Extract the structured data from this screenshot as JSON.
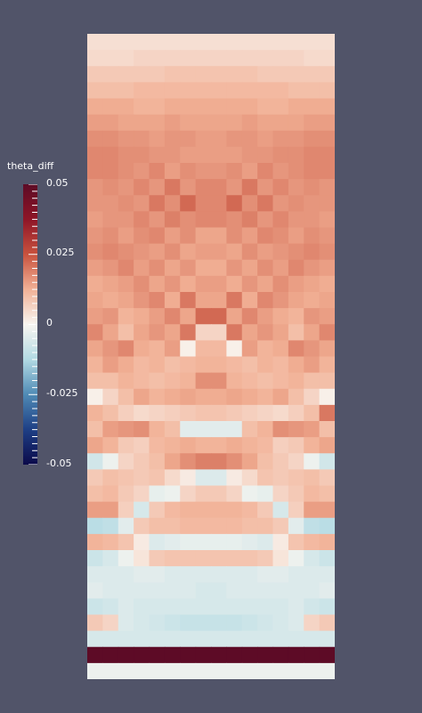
{
  "colorbar": {
    "title": "theta_diff",
    "labels": [
      "0.05",
      "0.025",
      "0",
      "-0.025",
      "-0.05"
    ],
    "range": [
      -0.05,
      0.05
    ],
    "colormap": [
      "#0b0a4a",
      "#1e3f85",
      "#4f8ab5",
      "#b2dae4",
      "#f8f5f0",
      "#f2b196",
      "#c8523e",
      "#8e1527",
      "#5d0b26"
    ]
  },
  "field": {
    "name": "theta_diff",
    "rows": 40,
    "cols": 16,
    "values_cols": 16,
    "values": [
      [
        0.004,
        0.004,
        0.004,
        0.004,
        0.004,
        0.004,
        0.004,
        0.004,
        0.004,
        0.004,
        0.004,
        0.004,
        0.004,
        0.004,
        0.004,
        0.004
      ],
      [
        0.005,
        0.005,
        0.005,
        0.006,
        0.006,
        0.006,
        0.006,
        0.006,
        0.006,
        0.006,
        0.006,
        0.006,
        0.006,
        0.006,
        0.005,
        0.005
      ],
      [
        0.008,
        0.008,
        0.008,
        0.008,
        0.008,
        0.009,
        0.009,
        0.009,
        0.009,
        0.009,
        0.009,
        0.008,
        0.008,
        0.008,
        0.008,
        0.008
      ],
      [
        0.01,
        0.01,
        0.01,
        0.011,
        0.011,
        0.011,
        0.011,
        0.011,
        0.011,
        0.011,
        0.011,
        0.011,
        0.011,
        0.01,
        0.01,
        0.01
      ],
      [
        0.013,
        0.013,
        0.013,
        0.012,
        0.012,
        0.013,
        0.013,
        0.013,
        0.013,
        0.013,
        0.013,
        0.012,
        0.012,
        0.013,
        0.013,
        0.013
      ],
      [
        0.015,
        0.015,
        0.014,
        0.014,
        0.014,
        0.015,
        0.014,
        0.014,
        0.014,
        0.014,
        0.015,
        0.014,
        0.014,
        0.014,
        0.015,
        0.015
      ],
      [
        0.017,
        0.017,
        0.016,
        0.016,
        0.015,
        0.016,
        0.016,
        0.015,
        0.015,
        0.016,
        0.016,
        0.015,
        0.016,
        0.016,
        0.017,
        0.017
      ],
      [
        0.018,
        0.018,
        0.017,
        0.017,
        0.016,
        0.016,
        0.015,
        0.015,
        0.015,
        0.015,
        0.016,
        0.016,
        0.017,
        0.017,
        0.018,
        0.018
      ],
      [
        0.018,
        0.018,
        0.017,
        0.016,
        0.018,
        0.015,
        0.017,
        0.016,
        0.016,
        0.017,
        0.015,
        0.018,
        0.016,
        0.017,
        0.018,
        0.018
      ],
      [
        0.016,
        0.017,
        0.016,
        0.018,
        0.016,
        0.02,
        0.016,
        0.018,
        0.018,
        0.016,
        0.02,
        0.016,
        0.018,
        0.016,
        0.017,
        0.016
      ],
      [
        0.016,
        0.016,
        0.017,
        0.016,
        0.02,
        0.017,
        0.022,
        0.018,
        0.018,
        0.022,
        0.017,
        0.02,
        0.016,
        0.017,
        0.016,
        0.016
      ],
      [
        0.015,
        0.016,
        0.016,
        0.018,
        0.016,
        0.019,
        0.017,
        0.018,
        0.018,
        0.017,
        0.019,
        0.016,
        0.018,
        0.016,
        0.016,
        0.015
      ],
      [
        0.016,
        0.017,
        0.015,
        0.017,
        0.018,
        0.015,
        0.017,
        0.014,
        0.014,
        0.017,
        0.015,
        0.018,
        0.017,
        0.015,
        0.017,
        0.016
      ],
      [
        0.017,
        0.018,
        0.017,
        0.016,
        0.015,
        0.017,
        0.014,
        0.015,
        0.015,
        0.014,
        0.017,
        0.015,
        0.016,
        0.017,
        0.018,
        0.017
      ],
      [
        0.015,
        0.016,
        0.018,
        0.015,
        0.017,
        0.014,
        0.016,
        0.013,
        0.013,
        0.016,
        0.014,
        0.017,
        0.015,
        0.018,
        0.016,
        0.015
      ],
      [
        0.013,
        0.014,
        0.015,
        0.017,
        0.014,
        0.016,
        0.013,
        0.015,
        0.015,
        0.013,
        0.016,
        0.014,
        0.017,
        0.015,
        0.014,
        0.013
      ],
      [
        0.014,
        0.013,
        0.014,
        0.016,
        0.018,
        0.013,
        0.02,
        0.014,
        0.014,
        0.02,
        0.013,
        0.018,
        0.016,
        0.014,
        0.013,
        0.014
      ],
      [
        0.015,
        0.016,
        0.012,
        0.013,
        0.015,
        0.018,
        0.014,
        0.022,
        0.022,
        0.014,
        0.018,
        0.015,
        0.013,
        0.012,
        0.016,
        0.015
      ],
      [
        0.018,
        0.014,
        0.01,
        0.014,
        0.016,
        0.014,
        0.02,
        0.006,
        0.006,
        0.02,
        0.014,
        0.016,
        0.014,
        0.01,
        0.014,
        0.018
      ],
      [
        0.014,
        0.016,
        0.018,
        0.013,
        0.012,
        0.015,
        0.001,
        0.011,
        0.011,
        0.001,
        0.015,
        0.012,
        0.013,
        0.018,
        0.016,
        0.014
      ],
      [
        0.012,
        0.015,
        0.013,
        0.011,
        0.012,
        0.01,
        0.011,
        0.012,
        0.012,
        0.011,
        0.01,
        0.012,
        0.011,
        0.013,
        0.015,
        0.012
      ],
      [
        0.01,
        0.01,
        0.012,
        0.011,
        0.01,
        0.011,
        0.012,
        0.017,
        0.017,
        0.012,
        0.011,
        0.01,
        0.011,
        0.012,
        0.01,
        0.01
      ],
      [
        0.001,
        0.006,
        0.01,
        0.014,
        0.012,
        0.013,
        0.014,
        0.013,
        0.013,
        0.014,
        0.013,
        0.012,
        0.014,
        0.01,
        0.006,
        0.001
      ],
      [
        0.012,
        0.01,
        0.007,
        0.005,
        0.006,
        0.007,
        0.008,
        0.009,
        0.009,
        0.008,
        0.007,
        0.006,
        0.005,
        0.007,
        0.01,
        0.02
      ],
      [
        0.01,
        0.015,
        0.016,
        0.017,
        0.012,
        0.01,
        -0.004,
        -0.004,
        -0.004,
        -0.004,
        0.01,
        0.012,
        0.017,
        0.016,
        0.015,
        0.01
      ],
      [
        0.014,
        0.012,
        0.008,
        0.007,
        0.011,
        0.012,
        0.013,
        0.012,
        0.012,
        0.013,
        0.012,
        0.011,
        0.007,
        0.008,
        0.012,
        0.014
      ],
      [
        -0.007,
        -0.002,
        0.006,
        0.008,
        0.01,
        0.014,
        0.017,
        0.019,
        0.019,
        0.017,
        0.014,
        0.01,
        0.008,
        0.006,
        -0.002,
        -0.007
      ],
      [
        0.008,
        0.01,
        0.009,
        0.008,
        0.009,
        0.005,
        0.002,
        -0.005,
        -0.005,
        0.002,
        0.005,
        0.009,
        0.008,
        0.009,
        0.01,
        0.008
      ],
      [
        0.01,
        0.011,
        0.008,
        0.006,
        -0.003,
        -0.002,
        0.006,
        0.008,
        0.008,
        0.006,
        -0.002,
        -0.003,
        0.006,
        0.008,
        0.011,
        0.01
      ],
      [
        0.015,
        0.015,
        0.007,
        -0.006,
        0.008,
        0.011,
        0.012,
        0.012,
        0.012,
        0.012,
        0.011,
        0.008,
        -0.006,
        0.007,
        0.015,
        0.015
      ],
      [
        -0.011,
        -0.01,
        -0.004,
        0.008,
        0.01,
        0.01,
        0.011,
        0.011,
        0.011,
        0.011,
        0.01,
        0.01,
        0.008,
        -0.004,
        -0.01,
        -0.011
      ],
      [
        0.012,
        0.011,
        0.009,
        0.002,
        -0.005,
        -0.004,
        -0.003,
        -0.003,
        -0.003,
        -0.003,
        -0.004,
        -0.005,
        0.002,
        0.009,
        0.011,
        0.012
      ],
      [
        -0.008,
        -0.006,
        -0.002,
        0.003,
        0.008,
        0.009,
        0.009,
        0.009,
        0.009,
        0.009,
        0.009,
        0.008,
        0.003,
        -0.002,
        -0.006,
        -0.008
      ],
      [
        -0.005,
        -0.005,
        -0.005,
        -0.004,
        -0.004,
        -0.005,
        -0.005,
        -0.005,
        -0.005,
        -0.005,
        -0.005,
        -0.004,
        -0.004,
        -0.005,
        -0.005,
        -0.005
      ],
      [
        -0.004,
        -0.005,
        -0.005,
        -0.005,
        -0.005,
        -0.005,
        -0.005,
        -0.006,
        -0.006,
        -0.005,
        -0.005,
        -0.005,
        -0.005,
        -0.005,
        -0.005,
        -0.004
      ],
      [
        -0.008,
        -0.007,
        -0.005,
        -0.006,
        -0.006,
        -0.006,
        -0.006,
        -0.006,
        -0.006,
        -0.006,
        -0.006,
        -0.006,
        -0.006,
        -0.005,
        -0.007,
        -0.008
      ],
      [
        0.008,
        0.006,
        -0.005,
        -0.006,
        -0.007,
        -0.008,
        -0.009,
        -0.009,
        -0.009,
        -0.009,
        -0.008,
        -0.007,
        -0.006,
        -0.005,
        0.006,
        0.008
      ],
      [
        -0.006,
        -0.006,
        -0.006,
        -0.006,
        -0.006,
        -0.006,
        -0.006,
        -0.006,
        -0.006,
        -0.006,
        -0.006,
        -0.006,
        -0.006,
        -0.006,
        -0.006,
        -0.006
      ],
      [
        0.05,
        0.05,
        0.05,
        0.05,
        0.05,
        0.05,
        0.05,
        0.05,
        0.05,
        0.05,
        0.05,
        0.05,
        0.05,
        0.05,
        0.05,
        0.05
      ],
      [
        -0.002,
        -0.002,
        -0.002,
        -0.002,
        -0.002,
        -0.002,
        -0.002,
        -0.002,
        -0.002,
        -0.002,
        -0.002,
        -0.002,
        -0.002,
        -0.002,
        -0.002,
        -0.002
      ]
    ]
  }
}
